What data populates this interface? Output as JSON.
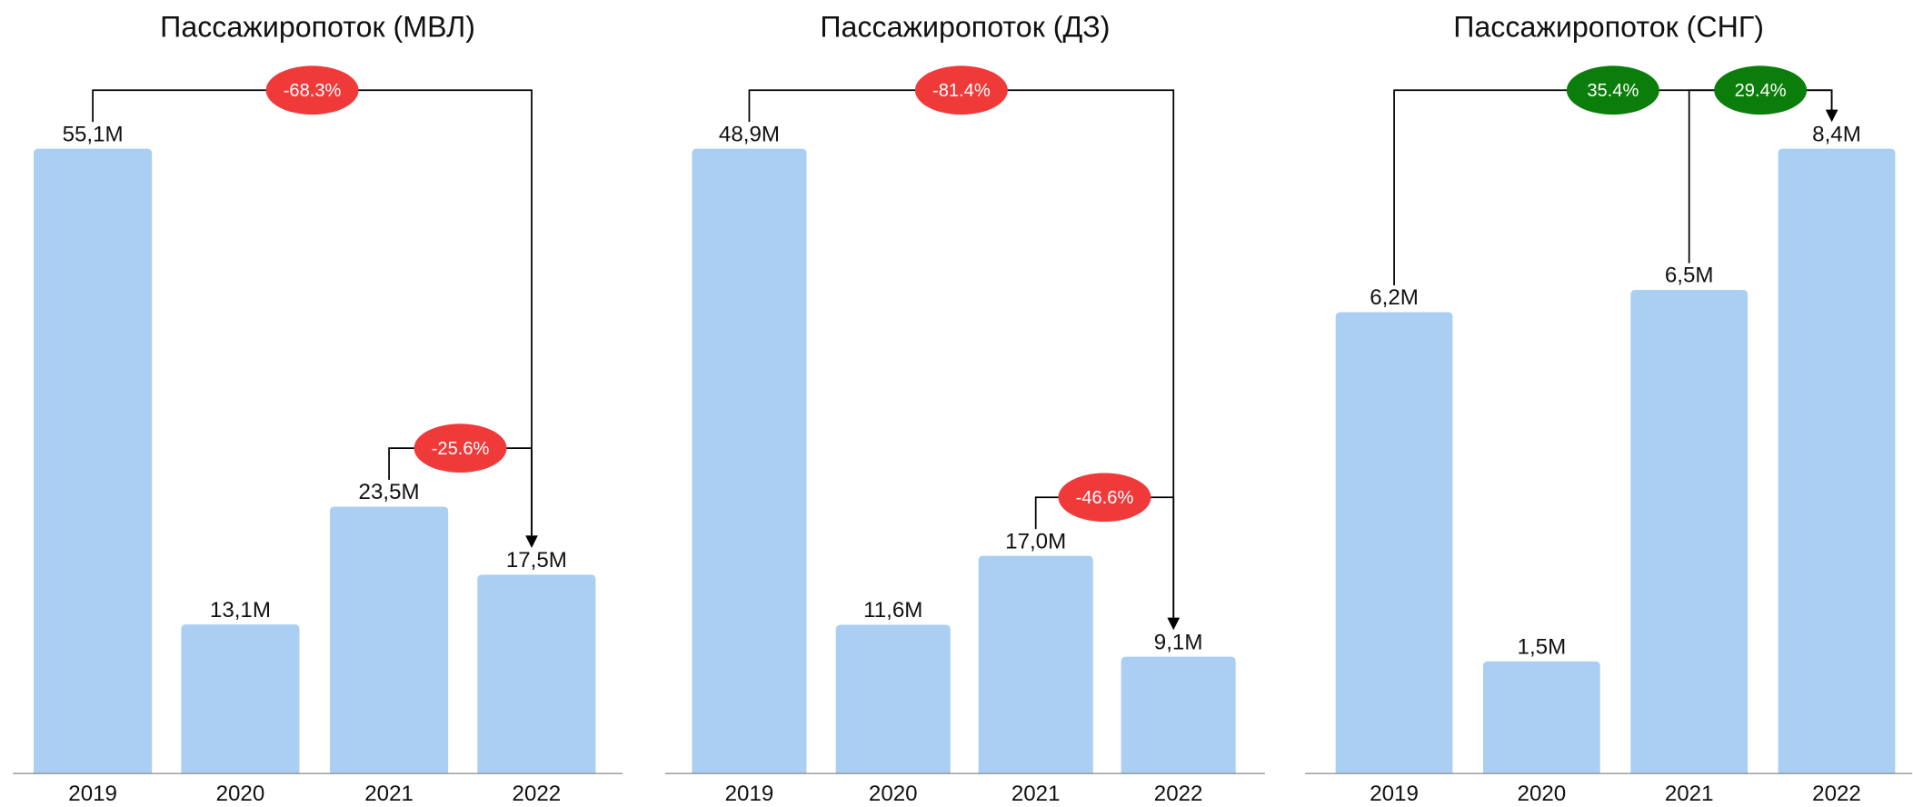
{
  "chart_data": [
    {
      "type": "bar",
      "title": "Пассажиропоток (МВЛ)",
      "categories": [
        "2019",
        "2020",
        "2021",
        "2022"
      ],
      "values": [
        55.1,
        13.1,
        23.5,
        17.5
      ],
      "value_labels": [
        "55,1M",
        "13,1M",
        "23,5M",
        "17,5M"
      ],
      "color": "#aacff3",
      "annotations": [
        {
          "from": "2019",
          "to": "2022",
          "label": "-68.3%",
          "color": "#f03a3a"
        },
        {
          "from": "2021",
          "to": "2022",
          "label": "-25.6%",
          "color": "#f03a3a"
        }
      ]
    },
    {
      "type": "bar",
      "title": "Пассажиропоток (ДЗ)",
      "categories": [
        "2019",
        "2020",
        "2021",
        "2022"
      ],
      "values": [
        48.9,
        11.6,
        17.0,
        9.1
      ],
      "value_labels": [
        "48,9M",
        "11,6M",
        "17,0M",
        "9,1M"
      ],
      "color": "#aacff3",
      "annotations": [
        {
          "from": "2019",
          "to": "2022",
          "label": "-81.4%",
          "color": "#f03a3a"
        },
        {
          "from": "2021",
          "to": "2022",
          "label": "-46.6%",
          "color": "#f03a3a"
        }
      ]
    },
    {
      "type": "bar",
      "title": "Пассажиропоток (СНГ)",
      "categories": [
        "2019",
        "2020",
        "2021",
        "2022"
      ],
      "values": [
        6.2,
        1.5,
        6.5,
        8.4
      ],
      "value_labels": [
        "6,2M",
        "1,5M",
        "6,5M",
        "8,4M"
      ],
      "color": "#aacff3",
      "annotations": [
        {
          "from": "2019",
          "to": "2022",
          "label": "35.4%",
          "color": "#0b7d0b"
        },
        {
          "from": "2021",
          "to": "2022",
          "label": "29.4%",
          "color": "#0b7d0b"
        }
      ]
    }
  ]
}
